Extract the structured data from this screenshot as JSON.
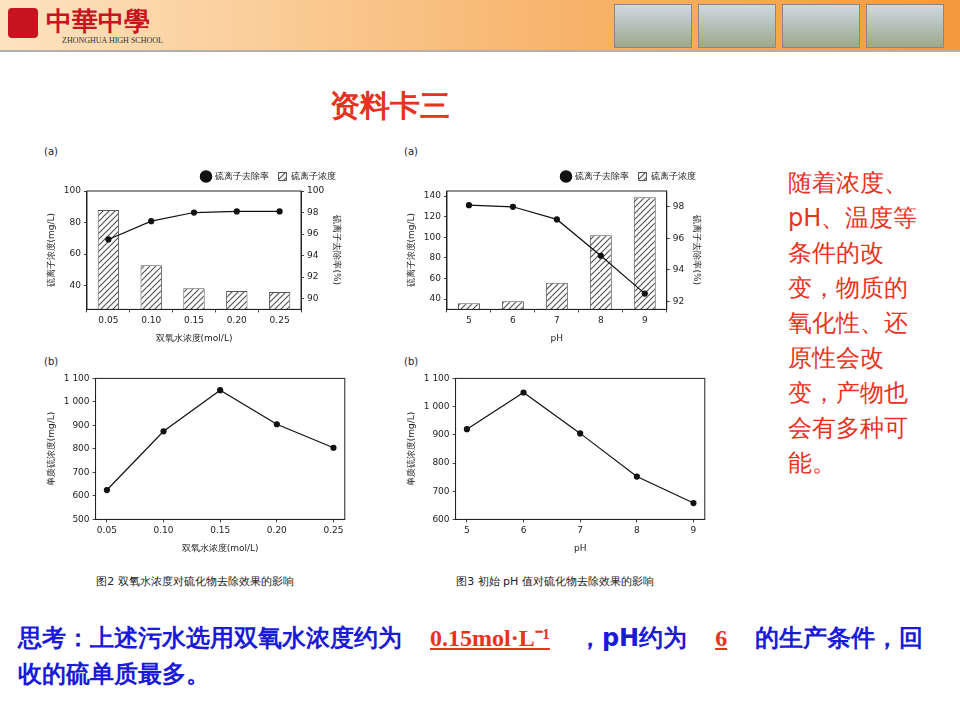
{
  "header": {
    "school_cn": "中華中學",
    "school_en": "ZHONGHUA HIGH SCHOOL"
  },
  "title": "资料卡三",
  "note": "随着浓度、pH、温度等条件的改变，物质的氧化性、还原性会改变，产物也会有多种可能。",
  "captions": [
    "图2 双氧水浓度对硫化物去除效果的影响",
    "图3 初始 pH 值对硫化物去除效果的影响"
  ],
  "question": {
    "prefix": "思考：上述污水选用双氧水浓度约为",
    "answer1": "0.15mol·L⁻¹",
    "middle": "，pH约为",
    "answer2": "6",
    "suffix": "的生产条件，回收的硫单质最多。"
  },
  "chart_data": [
    {
      "type": "bar",
      "panel": "(a)",
      "x_label": "双氧水浓度(mol/L)",
      "y_label": "硫离子浓度(mg/L)",
      "y2_label": "硫离子去除率(%)",
      "categories": [
        "0.05",
        "0.10",
        "0.15",
        "0.20",
        "0.25"
      ],
      "series": [
        {
          "name": "硫离子浓度",
          "type": "bar",
          "color": "#555555",
          "values": [
            88,
            53,
            38.4,
            36.7,
            36
          ]
        },
        {
          "name": "硫离子去除率",
          "type": "line",
          "color": "#111111",
          "marker": "circle",
          "axis": "y2",
          "values": [
            95.5,
            97.2,
            98.0,
            98.1,
            98.1
          ]
        }
      ],
      "ylim": [
        25,
        100
      ],
      "yticks": [
        40,
        60,
        80,
        100
      ],
      "y2lim": [
        89,
        100
      ],
      "y2ticks": [
        90,
        92,
        94,
        96,
        98,
        100
      ],
      "legend": "top right",
      "grid": false
    },
    {
      "type": "line",
      "panel": "(b)",
      "x_label": "双氧水浓度(mol/L)",
      "y_label": "单质硫浓度(mg/L)",
      "x": [
        0.05,
        0.1,
        0.15,
        0.2,
        0.25
      ],
      "series": [
        {
          "name": "单质硫浓度",
          "color": "#111111",
          "marker": "circle",
          "values": [
            625,
            875,
            1050,
            905,
            805
          ]
        }
      ],
      "xlim": [
        0.04,
        0.26
      ],
      "xticks": [
        0.05,
        {
          "value": 0.1,
          "label": "0.10"
        },
        0.15,
        {
          "value": 0.2,
          "label": "0.20"
        },
        0.25
      ],
      "ylim": [
        500,
        1100
      ],
      "yticks": [
        500,
        600,
        700,
        800,
        900,
        {
          "value": 1000,
          "label": "1 000"
        },
        {
          "value": 1100,
          "label": "1 100"
        }
      ],
      "grid": false
    },
    {
      "type": "bar",
      "panel": "(a)",
      "x_label": "pH",
      "y_label": "硫离子浓度(mg/L)",
      "y2_label": "硫离子去除率(%)",
      "categories": [
        "5",
        "6",
        "7",
        "8",
        "9"
      ],
      "series": [
        {
          "name": "硫离子浓度",
          "type": "bar",
          "color": "#555555",
          "values": [
            36,
            38,
            56,
            102,
            139
          ]
        },
        {
          "name": "硫离子去除率",
          "type": "line",
          "color": "#111111",
          "marker": "circle",
          "axis": "y2",
          "values": [
            98.1,
            98.0,
            97.2,
            94.9,
            92.5
          ]
        }
      ],
      "ylim": [
        30,
        145
      ],
      "yticks": [
        40,
        60,
        80,
        100,
        120,
        140
      ],
      "y2lim": [
        91.5,
        99
      ],
      "y2ticks": [
        92,
        94,
        96,
        98
      ],
      "legend": "top right",
      "grid": false
    },
    {
      "type": "line",
      "panel": "(b)",
      "x_label": "pH",
      "y_label": "单质硫浓度(mg/L)",
      "x": [
        5,
        6,
        7,
        8,
        9
      ],
      "series": [
        {
          "name": "单质硫浓度",
          "color": "#111111",
          "marker": "circle",
          "values": [
            920,
            1050,
            905,
            752,
            658
          ]
        }
      ],
      "xlim": [
        4.8,
        9.2
      ],
      "xticks": [
        5,
        6,
        7,
        8,
        9
      ],
      "ylim": [
        600,
        1100
      ],
      "yticks": [
        600,
        700,
        800,
        900,
        {
          "value": 1000,
          "label": "1 000"
        },
        {
          "value": 1100,
          "label": "1 100"
        }
      ],
      "grid": false
    }
  ]
}
